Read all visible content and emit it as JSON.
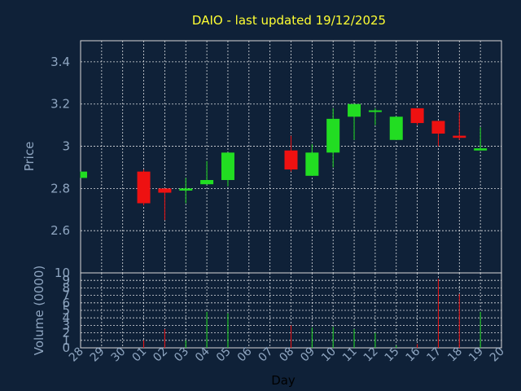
{
  "chart_data": {
    "type": "candlestick",
    "title": "DAIO - last updated 19/12/2025",
    "xlabel": "Day",
    "ylabel": "Price",
    "volume_label": "Volume (0000)",
    "x_ticks": [
      "28",
      "29",
      "30",
      "01",
      "02",
      "03",
      "04",
      "05",
      "06",
      "07",
      "08",
      "09",
      "10",
      "11",
      "12",
      "15",
      "16",
      "17",
      "18",
      "19",
      "20"
    ],
    "price_ylim": [
      2.4,
      3.5
    ],
    "price_ticks": [
      "2.6",
      "2.8",
      "3",
      "3.2",
      "3.4"
    ],
    "price_tick_values": [
      2.6,
      2.8,
      3.0,
      3.2,
      3.4
    ],
    "volume_ylim": [
      0,
      10
    ],
    "volume_ticks": [
      "0",
      "1",
      "2",
      "3",
      "4",
      "5",
      "6",
      "7",
      "8",
      "9",
      "10"
    ],
    "grid": true,
    "colors": {
      "up": "#22dd22",
      "down": "#ee1111",
      "background": "#0f2138",
      "grid": "#ffffff",
      "title": "#ffff33"
    },
    "candles": [
      {
        "x": "28",
        "open": 2.85,
        "high": 2.88,
        "low": 2.85,
        "close": 2.88
      },
      {
        "x": "01",
        "open": 2.88,
        "high": 2.89,
        "low": 2.72,
        "close": 2.73
      },
      {
        "x": "02",
        "open": 2.8,
        "high": 2.8,
        "low": 2.65,
        "close": 2.78
      },
      {
        "x": "03",
        "open": 2.79,
        "high": 2.85,
        "low": 2.73,
        "close": 2.8
      },
      {
        "x": "04",
        "open": 2.82,
        "high": 2.93,
        "low": 2.82,
        "close": 2.84
      },
      {
        "x": "05",
        "open": 2.84,
        "high": 2.97,
        "low": 2.81,
        "close": 2.97
      },
      {
        "x": "08",
        "open": 2.98,
        "high": 3.05,
        "low": 2.88,
        "close": 2.89
      },
      {
        "x": "09",
        "open": 2.86,
        "high": 3.01,
        "low": 2.86,
        "close": 2.97
      },
      {
        "x": "10",
        "open": 2.97,
        "high": 3.18,
        "low": 2.9,
        "close": 3.13
      },
      {
        "x": "11",
        "open": 3.14,
        "high": 3.2,
        "low": 3.03,
        "close": 3.2
      },
      {
        "x": "12",
        "open": 3.17,
        "high": 3.18,
        "low": 3.1,
        "close": 3.17
      },
      {
        "x": "15",
        "open": 3.03,
        "high": 3.14,
        "low": 3.03,
        "close": 3.14
      },
      {
        "x": "16",
        "open": 3.18,
        "high": 3.18,
        "low": 3.1,
        "close": 3.11
      },
      {
        "x": "17",
        "open": 3.12,
        "high": 3.12,
        "low": 3.0,
        "close": 3.06
      },
      {
        "x": "18",
        "open": 3.05,
        "high": 3.16,
        "low": 3.03,
        "close": 3.04
      },
      {
        "x": "19",
        "open": 2.98,
        "high": 3.09,
        "low": 2.98,
        "close": 2.99
      }
    ],
    "volumes": [
      {
        "x": "28",
        "value": 0
      },
      {
        "x": "01",
        "value": 1.0
      },
      {
        "x": "02",
        "value": 2.5
      },
      {
        "x": "03",
        "value": 1.0
      },
      {
        "x": "04",
        "value": 4.8
      },
      {
        "x": "05",
        "value": 4.6
      },
      {
        "x": "08",
        "value": 3.0
      },
      {
        "x": "09",
        "value": 2.7
      },
      {
        "x": "10",
        "value": 2.8
      },
      {
        "x": "11",
        "value": 2.5
      },
      {
        "x": "12",
        "value": 2.0
      },
      {
        "x": "15",
        "value": 0.3
      },
      {
        "x": "16",
        "value": 0.5
      },
      {
        "x": "17",
        "value": 9.2
      },
      {
        "x": "18",
        "value": 7.2
      },
      {
        "x": "19",
        "value": 4.8
      }
    ]
  }
}
